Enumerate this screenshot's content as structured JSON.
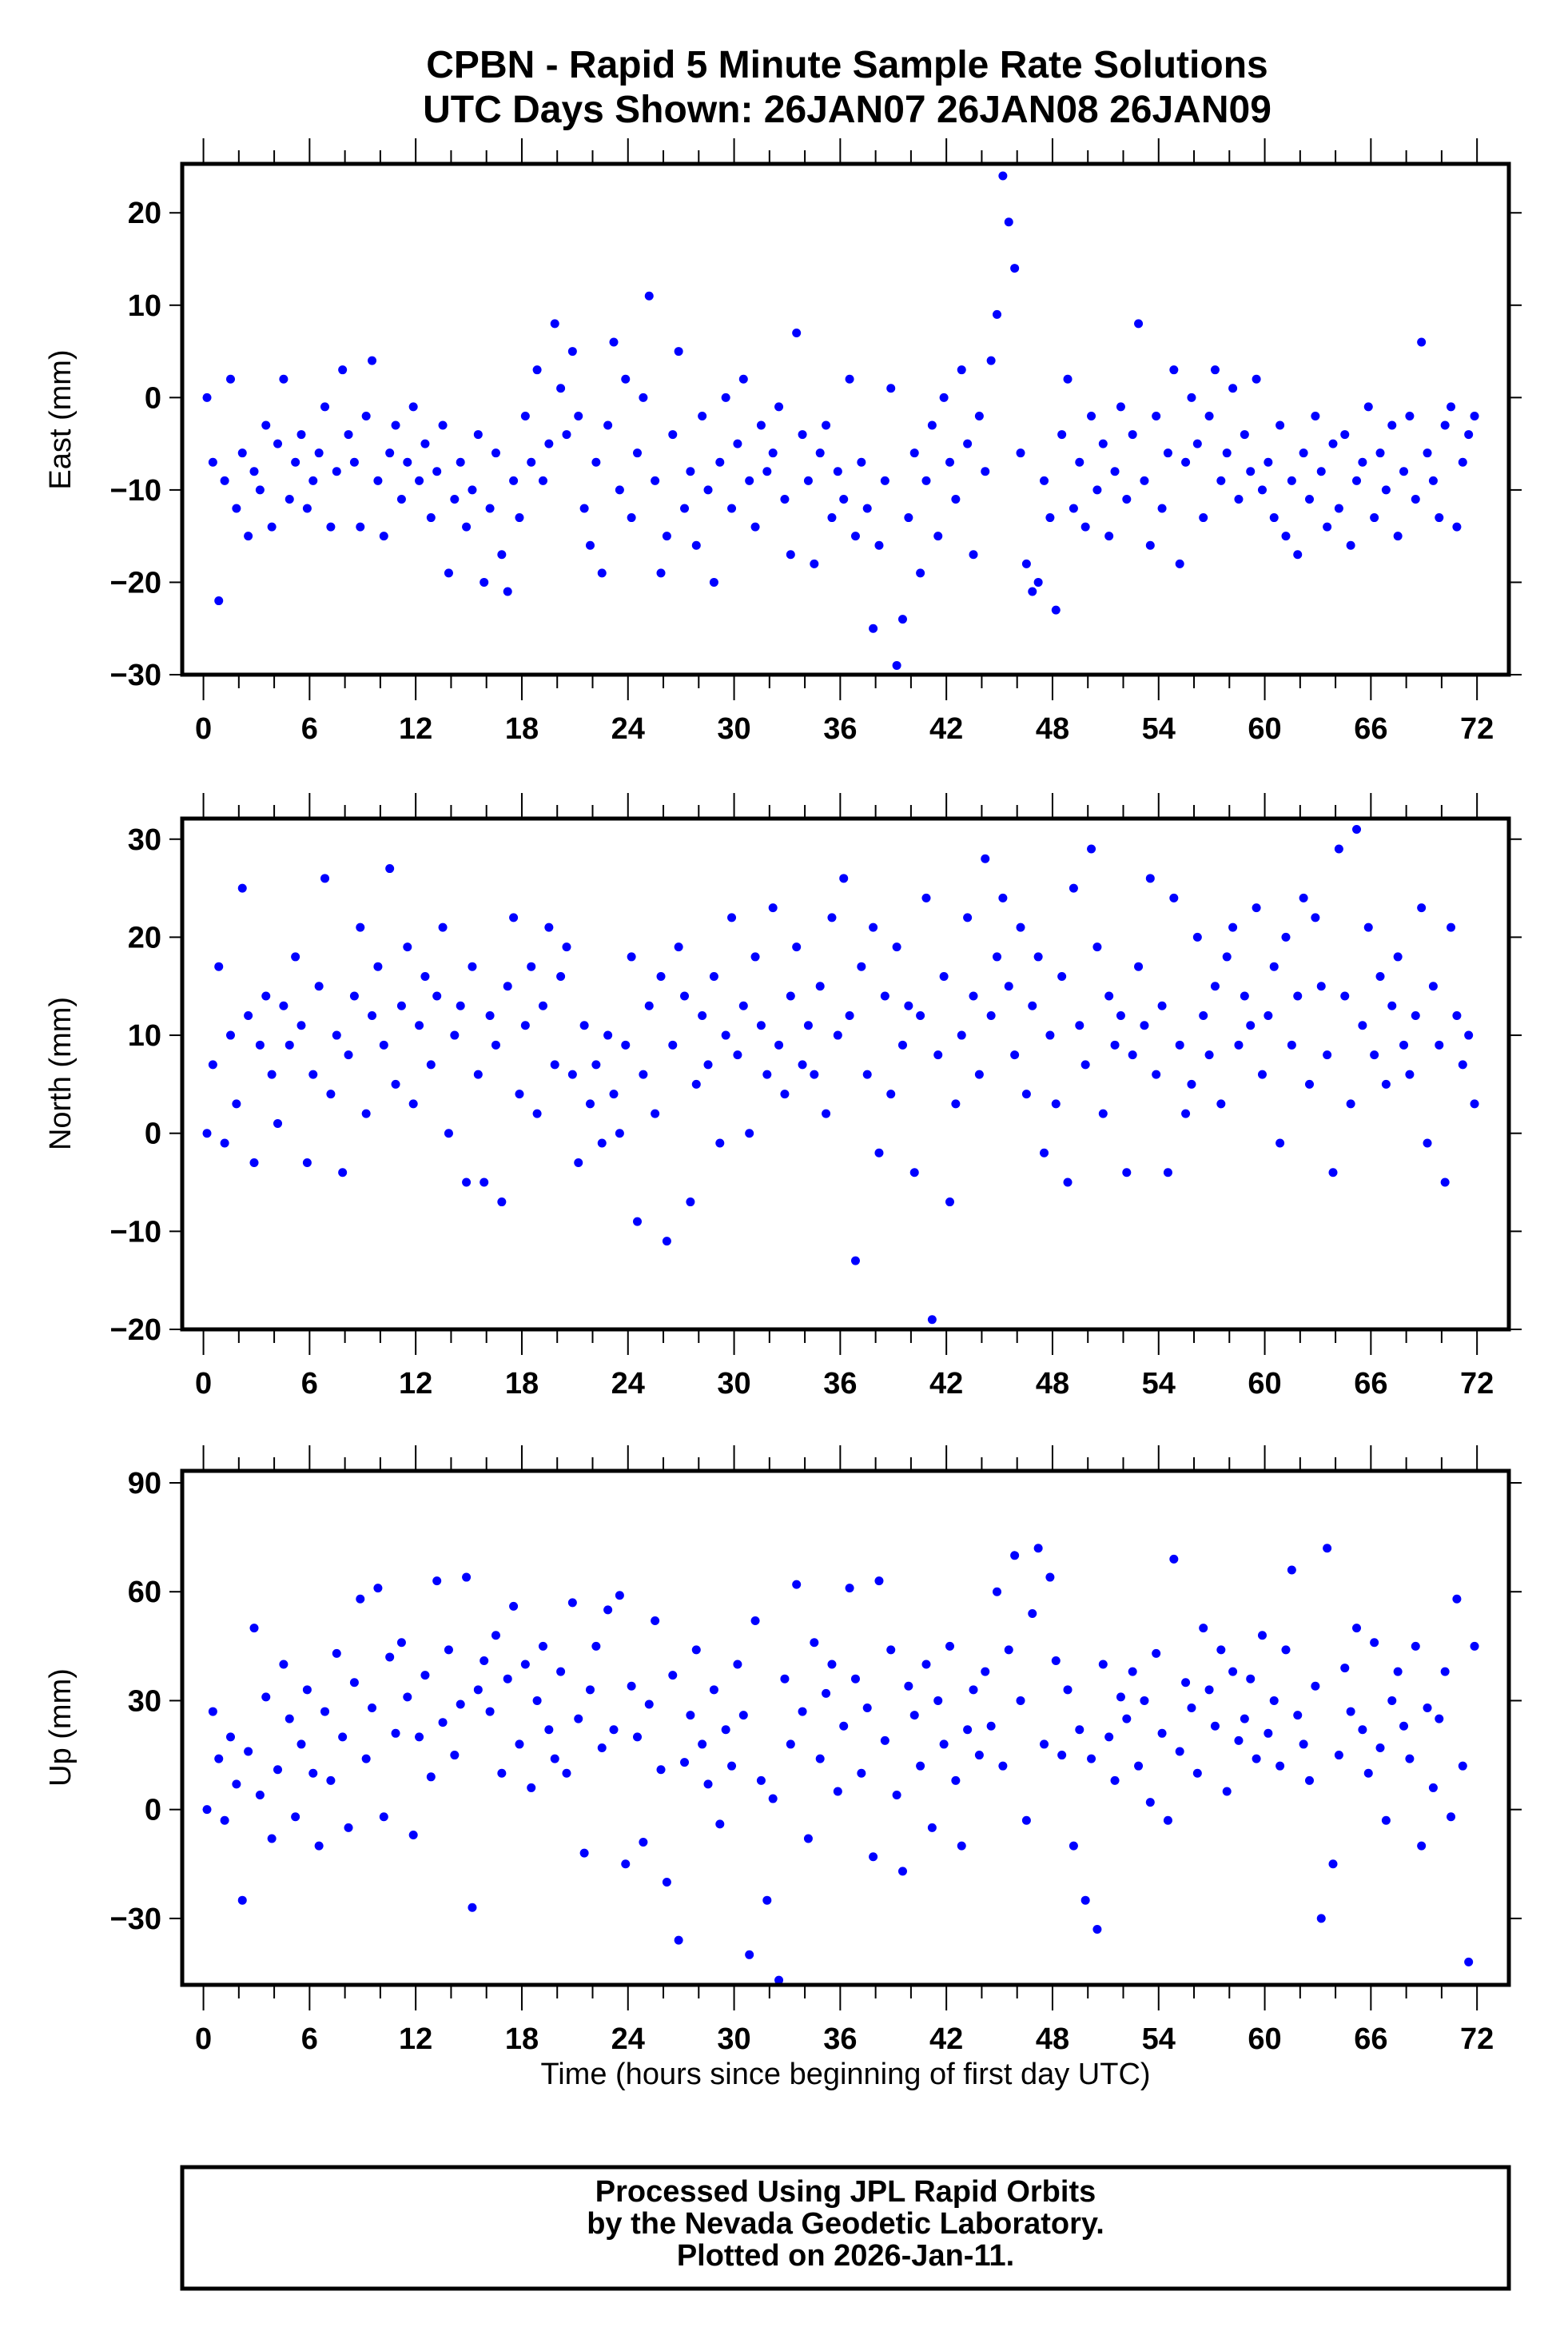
{
  "title": {
    "line1": "CPBN - Rapid 5 Minute Sample Rate Solutions",
    "line2": "UTC Days Shown:  26JAN07 26JAN08 26JAN09"
  },
  "footer": {
    "line1": "Processed Using JPL Rapid Orbits",
    "line2": "by the Nevada Geodetic Laboratory.",
    "line3": "Plotted on 2026-Jan-11."
  },
  "chart_data": [
    {
      "type": "scatter",
      "name": "east",
      "ylabel": "East (mm)",
      "xlabel": "",
      "xlim": [
        -1.2,
        73.8
      ],
      "ylim": [
        -30,
        25.3
      ],
      "xticks": [
        0,
        6,
        12,
        18,
        24,
        30,
        36,
        42,
        48,
        54,
        60,
        66,
        72
      ],
      "yticks": [
        -30,
        -20,
        -10,
        0,
        10,
        20
      ],
      "marker_color": "#0000ff",
      "x_start": 0.2,
      "x_step": 0.3333,
      "y": [
        0,
        -7,
        -22,
        -9,
        2,
        -12,
        -6,
        -15,
        -8,
        -10,
        -3,
        -14,
        -5,
        2,
        -11,
        -7,
        -4,
        -12,
        -9,
        -6,
        -1,
        -14,
        -8,
        3,
        -4,
        -7,
        -14,
        -2,
        4,
        -9,
        -15,
        -6,
        -3,
        -11,
        -7,
        -1,
        -9,
        -5,
        -13,
        -8,
        -3,
        -19,
        -11,
        -7,
        -14,
        -10,
        -4,
        -20,
        -12,
        -6,
        -17,
        -21,
        -9,
        -13,
        -2,
        -7,
        3,
        -9,
        -5,
        8,
        1,
        -4,
        5,
        -2,
        -12,
        -16,
        -7,
        -19,
        -3,
        6,
        -10,
        2,
        -13,
        -6,
        0,
        11,
        -9,
        -19,
        -15,
        -4,
        5,
        -12,
        -8,
        -16,
        -2,
        -10,
        -20,
        -7,
        0,
        -12,
        -5,
        2,
        -9,
        -14,
        -3,
        -8,
        -6,
        -1,
        -11,
        -17,
        7,
        -4,
        -9,
        -18,
        -6,
        -3,
        -13,
        -8,
        -11,
        2,
        -15,
        -7,
        -12,
        -25,
        -16,
        -9,
        1,
        -29,
        -24,
        -13,
        -6,
        -19,
        -9,
        -3,
        -15,
        0,
        -7,
        -11,
        3,
        -5,
        -17,
        -2,
        -8,
        4,
        9,
        24,
        19,
        14,
        -6,
        -18,
        -21,
        -20,
        -9,
        -13,
        -23,
        -4,
        2,
        -12,
        -7,
        -14,
        -2,
        -10,
        -5,
        -15,
        -8,
        -1,
        -11,
        -4,
        8,
        -9,
        -16,
        -2,
        -12,
        -6,
        3,
        -18,
        -7,
        0,
        -5,
        -13,
        -2,
        3,
        -9,
        -6,
        1,
        -11,
        -4,
        -8,
        2,
        -10,
        -7,
        -13,
        -3,
        -15,
        -9,
        -17,
        -6,
        -11,
        -2,
        -8,
        -14,
        -5,
        -12,
        -4,
        -16,
        -9,
        -7,
        -1,
        -13,
        -6,
        -10,
        -3,
        -15,
        -8,
        -2,
        -11,
        6,
        -6,
        -9,
        -13,
        -3,
        -1,
        -14,
        -7,
        -4,
        -2
      ]
    },
    {
      "type": "scatter",
      "name": "north",
      "ylabel": "North (mm)",
      "xlabel": "",
      "xlim": [
        -1.2,
        73.8
      ],
      "ylim": [
        -20,
        32.1
      ],
      "xticks": [
        0,
        6,
        12,
        18,
        24,
        30,
        36,
        42,
        48,
        54,
        60,
        66,
        72
      ],
      "yticks": [
        -20,
        -10,
        0,
        10,
        20,
        30
      ],
      "marker_color": "#0000ff",
      "x_start": 0.2,
      "x_step": 0.3333,
      "y": [
        0,
        7,
        17,
        -1,
        10,
        3,
        25,
        12,
        -3,
        9,
        14,
        6,
        1,
        13,
        9,
        18,
        11,
        -3,
        6,
        15,
        26,
        4,
        10,
        -4,
        8,
        14,
        21,
        2,
        12,
        17,
        9,
        27,
        5,
        13,
        19,
        3,
        11,
        16,
        7,
        14,
        21,
        0,
        10,
        13,
        -5,
        17,
        6,
        -5,
        12,
        9,
        -7,
        15,
        22,
        4,
        11,
        17,
        2,
        13,
        21,
        7,
        16,
        19,
        6,
        -3,
        11,
        3,
        7,
        -1,
        10,
        4,
        0,
        9,
        18,
        -9,
        6,
        13,
        2,
        16,
        -11,
        9,
        19,
        14,
        -7,
        5,
        12,
        7,
        16,
        -1,
        10,
        22,
        8,
        13,
        0,
        18,
        11,
        6,
        23,
        9,
        4,
        14,
        19,
        7,
        11,
        6,
        15,
        2,
        22,
        10,
        26,
        12,
        -13,
        17,
        6,
        21,
        -2,
        14,
        4,
        19,
        9,
        13,
        -4,
        12,
        24,
        -19,
        8,
        16,
        -7,
        3,
        10,
        22,
        14,
        6,
        28,
        12,
        18,
        24,
        15,
        8,
        21,
        4,
        13,
        18,
        -2,
        10,
        3,
        16,
        -5,
        25,
        11,
        7,
        29,
        19,
        2,
        14,
        9,
        12,
        -4,
        8,
        17,
        11,
        26,
        6,
        13,
        -4,
        24,
        9,
        2,
        5,
        20,
        12,
        8,
        15,
        3,
        18,
        21,
        9,
        14,
        11,
        23,
        6,
        12,
        17,
        -1,
        20,
        9,
        14,
        24,
        5,
        22,
        15,
        8,
        -4,
        29,
        14,
        3,
        31,
        11,
        21,
        8,
        16,
        5,
        13,
        18,
        9,
        6,
        12,
        23,
        -1,
        15,
        9,
        -5,
        21,
        12,
        7,
        10,
        3
      ]
    },
    {
      "type": "scatter",
      "name": "up",
      "ylabel": "Up (mm)",
      "xlabel": "Time (hours since beginning of first day UTC)",
      "xlim": [
        -1.2,
        73.8
      ],
      "ylim": [
        -48.3,
        93.3
      ],
      "xticks": [
        0,
        6,
        12,
        18,
        24,
        30,
        36,
        42,
        48,
        54,
        60,
        66,
        72
      ],
      "yticks": [
        -30,
        0,
        30,
        60,
        90
      ],
      "marker_color": "#0000ff",
      "x_start": 0.2,
      "x_step": 0.3333,
      "y": [
        0,
        27,
        14,
        -3,
        20,
        7,
        -25,
        16,
        50,
        4,
        31,
        -8,
        11,
        40,
        25,
        -2,
        18,
        33,
        10,
        -10,
        27,
        8,
        43,
        20,
        -5,
        35,
        58,
        14,
        28,
        61,
        -2,
        42,
        21,
        46,
        31,
        -7,
        20,
        37,
        9,
        63,
        24,
        44,
        15,
        29,
        64,
        -27,
        33,
        41,
        27,
        48,
        10,
        36,
        56,
        18,
        40,
        6,
        30,
        45,
        22,
        14,
        38,
        10,
        57,
        25,
        -12,
        33,
        45,
        17,
        55,
        22,
        59,
        -15,
        34,
        20,
        -9,
        29,
        52,
        11,
        -20,
        37,
        -36,
        13,
        26,
        44,
        18,
        7,
        33,
        -4,
        22,
        12,
        40,
        26,
        -40,
        52,
        8,
        -25,
        3,
        -47,
        36,
        18,
        62,
        27,
        -8,
        46,
        14,
        32,
        40,
        5,
        23,
        61,
        36,
        10,
        28,
        -13,
        63,
        19,
        44,
        4,
        -17,
        34,
        26,
        12,
        40,
        -5,
        30,
        18,
        45,
        8,
        -10,
        22,
        33,
        15,
        38,
        23,
        60,
        12,
        44,
        70,
        30,
        -3,
        54,
        72,
        18,
        64,
        41,
        15,
        33,
        -10,
        22,
        -25,
        14,
        -33,
        40,
        20,
        8,
        31,
        25,
        38,
        12,
        30,
        2,
        43,
        21,
        -3,
        69,
        16,
        35,
        28,
        10,
        50,
        33,
        23,
        44,
        5,
        38,
        19,
        25,
        36,
        14,
        48,
        21,
        30,
        12,
        44,
        66,
        26,
        18,
        8,
        34,
        -30,
        72,
        -15,
        15,
        39,
        27,
        50,
        22,
        10,
        46,
        17,
        -3,
        30,
        38,
        23,
        14,
        45,
        -10,
        28,
        6,
        25,
        38,
        -2,
        58,
        12,
        -42,
        45
      ]
    }
  ]
}
